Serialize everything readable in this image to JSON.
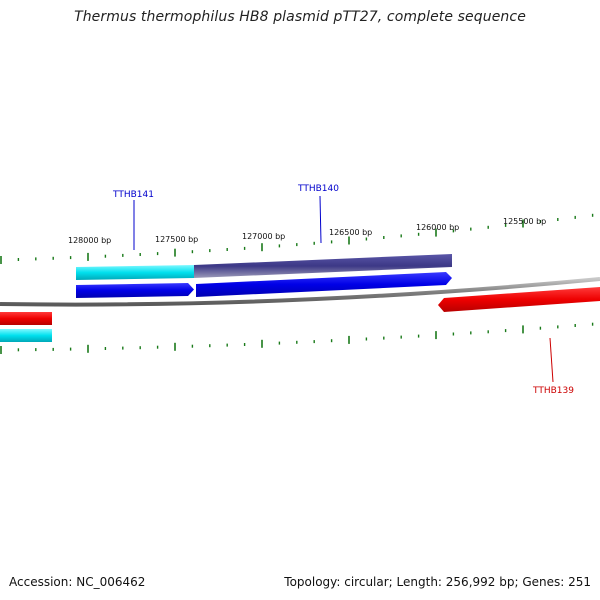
{
  "title": "Thermus thermophilus HB8 plasmid pTT27, complete sequence",
  "footer": {
    "accession": "Accession: NC_006462",
    "summary": "Topology: circular; Length: 256,992 bp; Genes: 251"
  },
  "ruler": {
    "labels": [
      "128000 bp",
      "127500 bp",
      "127000 bp",
      "126500 bp",
      "126000 bp",
      "125500 bp"
    ],
    "tick_color": "#1a7a1a"
  },
  "genes": [
    {
      "name": "TTHB141",
      "color": "#0000cc",
      "strand": "forward"
    },
    {
      "name": "TTHB140",
      "color": "#0000cc",
      "strand": "forward"
    },
    {
      "name": "TTHB139",
      "color": "#dd0000",
      "strand": "reverse"
    }
  ],
  "colors": {
    "backbone": "#808080",
    "gene_forward": "#0000ee",
    "gene_reverse": "#ee0000",
    "cds_cyan": "#00e5f0",
    "cds_slate": "#3c3886"
  }
}
